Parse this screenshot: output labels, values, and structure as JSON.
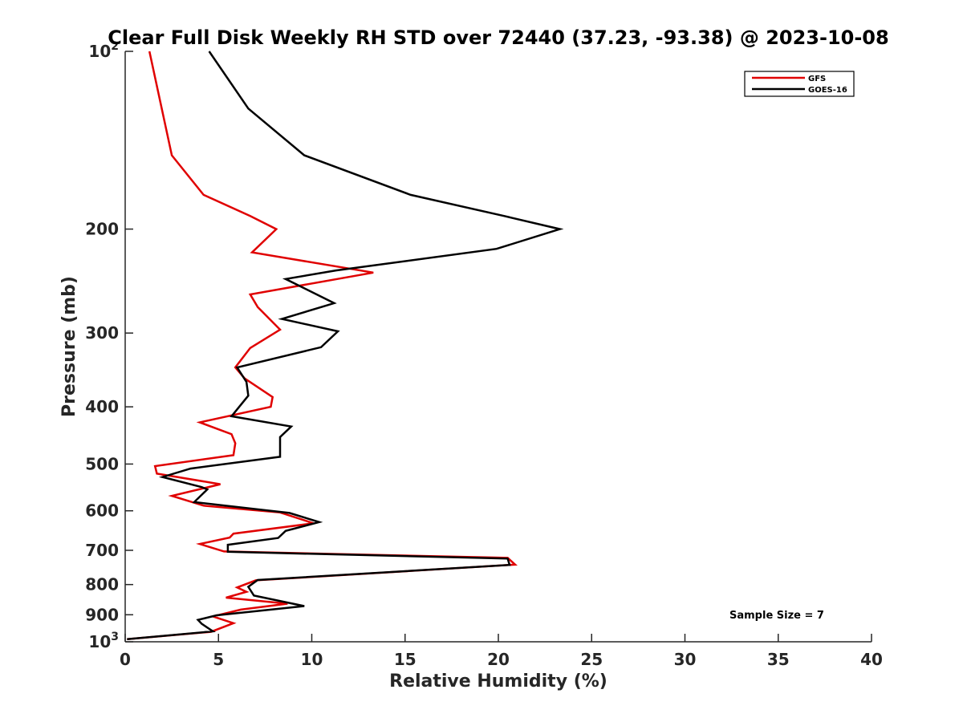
{
  "chart_data": {
    "type": "line",
    "title": "Clear Full Disk Weekly RH STD over 72440 (37.23, -93.38) @ 2023-10-08",
    "xlabel": "Relative Humidity (%)",
    "ylabel": "Pressure (mb)",
    "xlim": [
      0,
      40
    ],
    "ylim": [
      100,
      1000
    ],
    "yscale": "log",
    "y_reversed": true,
    "grid": false,
    "legend_position": "top-right",
    "x_ticks": [
      0,
      5,
      10,
      15,
      20,
      25,
      30,
      35,
      40
    ],
    "x_tick_labels": [
      "0",
      "5",
      "10",
      "15",
      "20",
      "25",
      "30",
      "35",
      "40"
    ],
    "y_ticks": [
      100,
      200,
      300,
      400,
      500,
      600,
      700,
      800,
      900,
      1000
    ],
    "y_tick_labels": [
      {
        "base": "10",
        "exp": "2"
      },
      {
        "base": "200",
        "exp": ""
      },
      {
        "base": "300",
        "exp": ""
      },
      {
        "base": "400",
        "exp": ""
      },
      {
        "base": "500",
        "exp": ""
      },
      {
        "base": "600",
        "exp": ""
      },
      {
        "base": "700",
        "exp": ""
      },
      {
        "base": "800",
        "exp": ""
      },
      {
        "base": "900",
        "exp": ""
      },
      {
        "base": "10",
        "exp": "3"
      }
    ],
    "annotation": "Sample Size = 7",
    "series": [
      {
        "name": "GFS",
        "color": "#e00000",
        "points": [
          [
            1.3,
            100
          ],
          [
            2.5,
            150
          ],
          [
            4.2,
            175
          ],
          [
            6.7,
            190
          ],
          [
            8.1,
            200
          ],
          [
            6.8,
            219
          ],
          [
            13.3,
            237
          ],
          [
            6.7,
            258
          ],
          [
            7.1,
            271
          ],
          [
            8.3,
            296
          ],
          [
            6.7,
            318
          ],
          [
            5.9,
            343
          ],
          [
            6.4,
            358
          ],
          [
            7.9,
            385
          ],
          [
            7.8,
            400
          ],
          [
            4.0,
            425
          ],
          [
            5.7,
            445
          ],
          [
            5.9,
            461
          ],
          [
            5.8,
            483
          ],
          [
            1.6,
            504
          ],
          [
            1.7,
            519
          ],
          [
            5.1,
            541
          ],
          [
            2.5,
            566
          ],
          [
            4.2,
            588
          ],
          [
            8.3,
            604
          ],
          [
            10.1,
            630
          ],
          [
            5.8,
            656
          ],
          [
            5.6,
            666
          ],
          [
            4.0,
            683
          ],
          [
            5.3,
            703
          ],
          [
            20.5,
            721
          ],
          [
            20.9,
            740
          ],
          [
            7.0,
            787
          ],
          [
            6.0,
            809
          ],
          [
            6.5,
            823
          ],
          [
            5.4,
            842
          ],
          [
            8.7,
            862
          ],
          [
            6.2,
            882
          ],
          [
            4.7,
            906
          ],
          [
            5.8,
            930
          ],
          [
            4.6,
            962
          ],
          [
            0.1,
            990
          ]
        ]
      },
      {
        "name": "GOES-16",
        "color": "#000000",
        "points": [
          [
            4.5,
            100
          ],
          [
            6.6,
            125
          ],
          [
            9.6,
            150
          ],
          [
            15.3,
            175
          ],
          [
            20.3,
            190
          ],
          [
            23.3,
            200
          ],
          [
            19.9,
            216
          ],
          [
            11.3,
            235
          ],
          [
            8.6,
            243
          ],
          [
            11.2,
            267
          ],
          [
            8.4,
            284
          ],
          [
            11.4,
            298
          ],
          [
            10.5,
            317
          ],
          [
            6.0,
            343
          ],
          [
            6.5,
            363
          ],
          [
            6.6,
            383
          ],
          [
            5.7,
            415
          ],
          [
            8.9,
            432
          ],
          [
            8.3,
            450
          ],
          [
            8.3,
            486
          ],
          [
            3.5,
            509
          ],
          [
            2.0,
            526
          ],
          [
            4.1,
            547
          ],
          [
            4.4,
            552
          ],
          [
            3.7,
            580
          ],
          [
            8.8,
            605
          ],
          [
            10.4,
            627
          ],
          [
            8.6,
            649
          ],
          [
            8.2,
            667
          ],
          [
            5.5,
            685
          ],
          [
            5.5,
            704
          ],
          [
            20.5,
            723
          ],
          [
            20.6,
            741
          ],
          [
            7.1,
            786
          ],
          [
            6.6,
            807
          ],
          [
            6.9,
            835
          ],
          [
            9.6,
            870
          ],
          [
            4.9,
            902
          ],
          [
            3.9,
            918
          ],
          [
            4.1,
            932
          ],
          [
            4.7,
            960
          ],
          [
            0.1,
            990
          ]
        ]
      }
    ]
  }
}
